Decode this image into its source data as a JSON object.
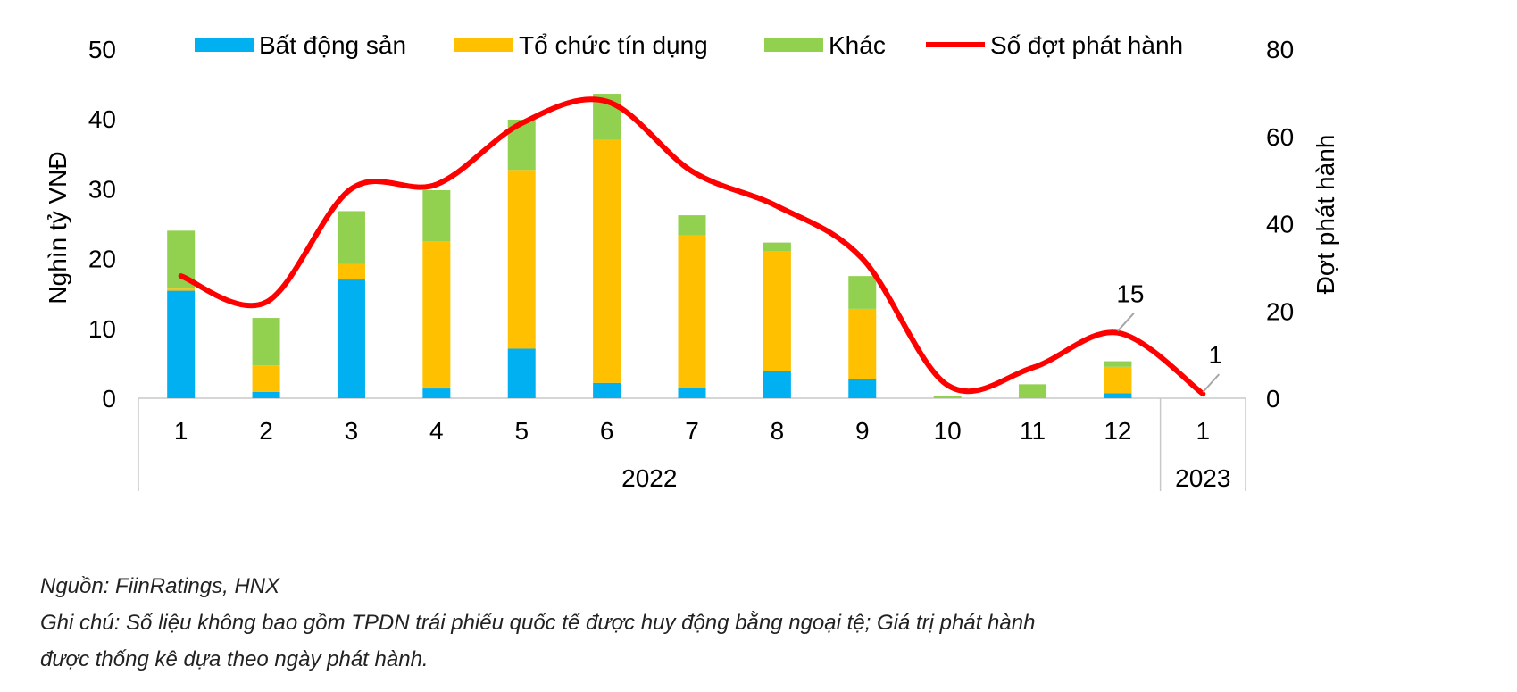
{
  "chart_data": {
    "type": "bar",
    "stacked": true,
    "categories": [
      "1",
      "2",
      "3",
      "4",
      "5",
      "6",
      "7",
      "8",
      "9",
      "10",
      "11",
      "12",
      "1"
    ],
    "year_groups": [
      {
        "label": "2022",
        "count": 12
      },
      {
        "label": "2023",
        "count": 1
      }
    ],
    "series": [
      {
        "name": "Bất động sản",
        "color": "#00B0F0",
        "values": [
          15.4,
          0.9,
          17.0,
          1.4,
          7.1,
          2.2,
          1.5,
          3.9,
          2.7,
          0.0,
          0.0,
          0.7,
          0.0
        ]
      },
      {
        "name": "Tổ chức tín dụng",
        "color": "#FFC000",
        "values": [
          0.3,
          3.8,
          2.2,
          21.1,
          25.6,
          34.8,
          21.8,
          17.2,
          10.1,
          0.0,
          0.0,
          3.8,
          0.0
        ]
      },
      {
        "name": "Khác",
        "color": "#92D050",
        "values": [
          8.3,
          6.8,
          7.6,
          7.3,
          7.2,
          6.6,
          2.9,
          1.2,
          4.7,
          0.3,
          2.0,
          0.8,
          0.0
        ]
      }
    ],
    "line_series": {
      "name": "Số đợt phát hành",
      "color": "#FF0000",
      "axis": "right",
      "values": [
        28,
        22,
        48,
        49,
        63,
        68,
        52,
        44,
        32,
        3,
        7,
        15,
        1
      ],
      "data_labels": [
        {
          "index": 11,
          "text": "15"
        },
        {
          "index": 12,
          "text": "1"
        }
      ]
    },
    "ylabel": "Nghìn tỷ VNĐ",
    "ylim": [
      0,
      50
    ],
    "yticks": [
      "0",
      "10",
      "20",
      "30",
      "40",
      "50"
    ],
    "y2label": "Đợt phát hành",
    "y2lim": [
      0,
      80
    ],
    "y2ticks": [
      "0",
      "20",
      "40",
      "60",
      "80"
    ],
    "legend": "top",
    "grid": false
  },
  "notes": {
    "source": "Nguồn: FiinRatings, HNX",
    "note_line1": "Ghi chú: Số liệu không bao gồm TPDN trái phiếu quốc tế được huy động bằng ngoại tệ; Giá trị phát hành",
    "note_line2": "được thống kê dựa theo ngày phát hành."
  }
}
